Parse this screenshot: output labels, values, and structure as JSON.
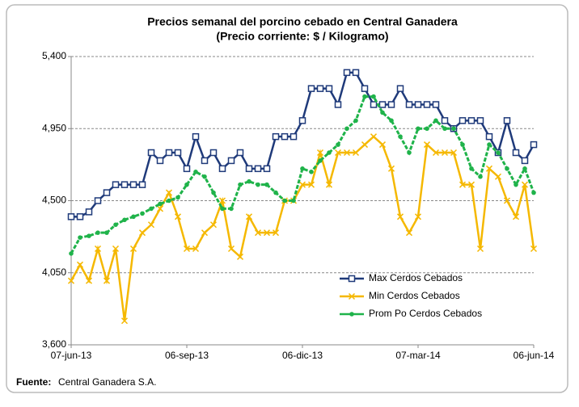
{
  "chart_data": {
    "type": "line",
    "title": "Precios semanal del porcino cebado en Central Ganadera",
    "subtitle": "(Precio corriente: $ / Kilogramo)",
    "categories": [
      "07-jun-13",
      null,
      null,
      null,
      null,
      null,
      null,
      null,
      null,
      null,
      null,
      null,
      null,
      "06-sep-13",
      null,
      null,
      null,
      null,
      null,
      null,
      null,
      null,
      null,
      null,
      null,
      null,
      "06-dic-13",
      null,
      null,
      null,
      null,
      null,
      null,
      null,
      null,
      null,
      null,
      null,
      null,
      "07-mar-14",
      null,
      null,
      null,
      null,
      null,
      null,
      null,
      null,
      null,
      null,
      null,
      null,
      "06-jun-14"
    ],
    "series": [
      {
        "name": "Max Cerdos Cebados",
        "color": "#1f3a7a",
        "marker": "square",
        "values": [
          4400,
          4400,
          4430,
          4500,
          4550,
          4600,
          4600,
          4600,
          4600,
          4800,
          4750,
          4800,
          4800,
          4700,
          4900,
          4750,
          4800,
          4700,
          4750,
          4800,
          4700,
          4700,
          4700,
          4900,
          4900,
          4900,
          5000,
          5200,
          5200,
          5200,
          5100,
          5300,
          5300,
          5200,
          5100,
          5100,
          5100,
          5200,
          5100,
          5100,
          5100,
          5100,
          5000,
          4950,
          5000,
          5000,
          5000,
          4900,
          4800,
          5000,
          4800,
          4750,
          4850
        ]
      },
      {
        "name": "Min Cerdos Cebados",
        "color": "#f5b800",
        "marker": "x",
        "values": [
          4000,
          4100,
          4000,
          4200,
          4000,
          4200,
          3750,
          4200,
          4300,
          4350,
          4450,
          4550,
          4400,
          4200,
          4200,
          4300,
          4350,
          4500,
          4200,
          4150,
          4400,
          4300,
          4300,
          4300,
          4500,
          4500,
          4600,
          4600,
          4800,
          4600,
          4800,
          4800,
          4800,
          4850,
          4900,
          4850,
          4700,
          4400,
          4300,
          4400,
          4850,
          4800,
          4800,
          4800,
          4600,
          4600,
          4200,
          4700,
          4650,
          4500,
          4400,
          4600,
          4200
        ]
      },
      {
        "name": "Prom Po Cerdos Cebados",
        "color": "#1fb34a",
        "marker": "dot",
        "values": [
          4170,
          4270,
          4280,
          4300,
          4300,
          4350,
          4380,
          4400,
          4420,
          4450,
          4480,
          4500,
          4520,
          4600,
          4680,
          4650,
          4550,
          4450,
          4450,
          4600,
          4620,
          4600,
          4600,
          4550,
          4500,
          4500,
          4700,
          4680,
          4750,
          4800,
          4850,
          4950,
          5000,
          5150,
          5150,
          5050,
          5000,
          4900,
          4800,
          4950,
          4950,
          5000,
          4950,
          4950,
          4850,
          4700,
          4650,
          4850,
          4800,
          4700,
          4600,
          4700,
          4550
        ]
      }
    ],
    "ylim": [
      3600,
      5400
    ],
    "yticks": [
      {
        "value": 3600,
        "label": "3,600"
      },
      {
        "value": 4050,
        "label": "4,050"
      },
      {
        "value": 4500,
        "label": "4,500"
      },
      {
        "value": 4950,
        "label": "4,950"
      },
      {
        "value": 5400,
        "label": "5,400"
      }
    ],
    "grid": true,
    "legend": "lower-right"
  },
  "footer": {
    "label": "Fuente:",
    "text": "Central Ganadera S.A."
  }
}
